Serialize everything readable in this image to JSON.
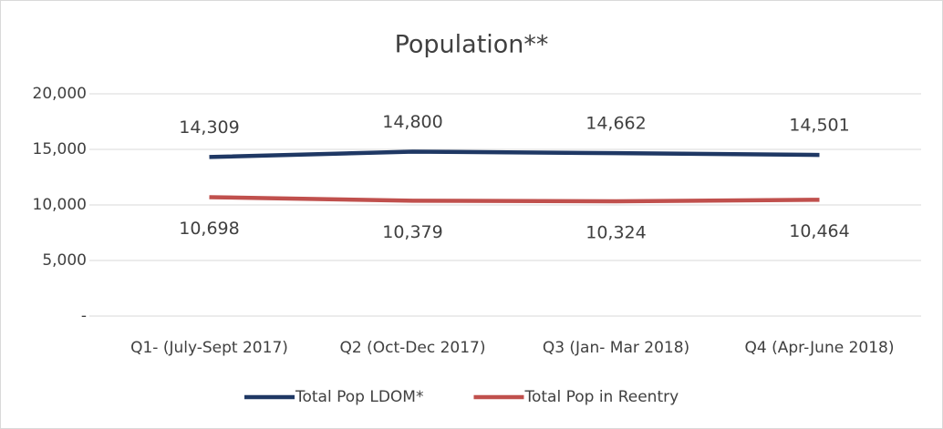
{
  "chart_data": {
    "type": "line",
    "title": "Population**",
    "categories": [
      "Q1- (July-Sept 2017)",
      "Q2 (Oct-Dec 2017)",
      "Q3 (Jan- Mar 2018)",
      "Q4 (Apr-June 2018)"
    ],
    "series": [
      {
        "name": "Total Pop LDOM*",
        "color": "#1f3864",
        "values": [
          14309,
          14800,
          14662,
          14501
        ],
        "value_labels": [
          "14,309",
          "14,800",
          "14,662",
          "14,501"
        ],
        "label_position": "above"
      },
      {
        "name": "Total Pop in Reentry",
        "color": "#c0504d",
        "values": [
          10698,
          10379,
          10324,
          10464
        ],
        "value_labels": [
          "10,698",
          "10,379",
          "10,324",
          "10,464"
        ],
        "label_position": "below"
      }
    ],
    "ylim": [
      0,
      20000
    ],
    "yticks": [
      {
        "value": 0,
        "label": "-"
      },
      {
        "value": 5000,
        "label": "5,000"
      },
      {
        "value": 10000,
        "label": "10,000"
      },
      {
        "value": 15000,
        "label": "15,000"
      },
      {
        "value": 20000,
        "label": "20,000"
      }
    ],
    "grid": true,
    "legend": "bottom"
  }
}
